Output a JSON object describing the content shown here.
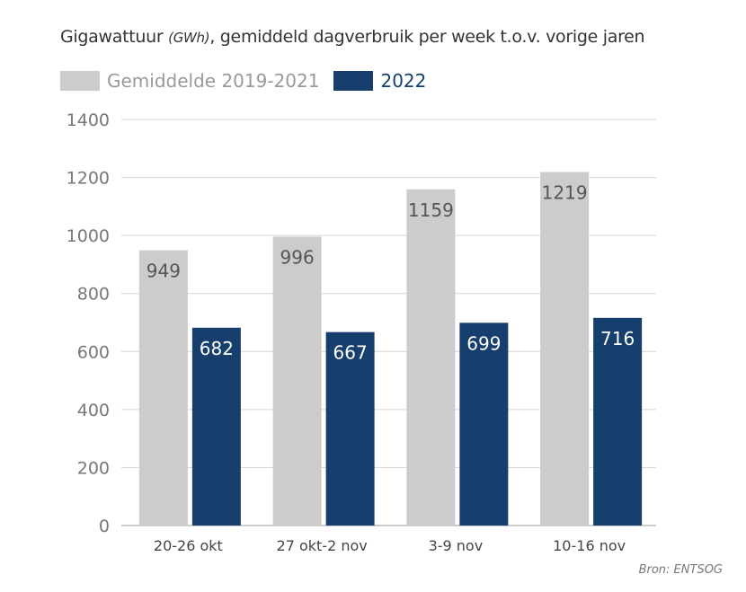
{
  "chart_data": {
    "type": "bar",
    "title": "Gigawattuur",
    "title_unit": "(GWh)",
    "title_rest": ", gemiddeld dagverbruik per week t.o.v. vorige jaren",
    "categories": [
      "20-26 okt",
      "27 okt-2 nov",
      "3-9 nov",
      "10-16 nov"
    ],
    "series": [
      {
        "name": "Gemiddelde 2019-2021",
        "values": [
          949,
          996,
          1159,
          1219
        ],
        "color": "#cccccc",
        "label_color": "#555555"
      },
      {
        "name": "2022",
        "values": [
          682,
          667,
          699,
          716
        ],
        "color": "#163f6e",
        "label_color": "#ffffff"
      }
    ],
    "yticks": [
      0,
      200,
      400,
      600,
      800,
      1000,
      1200,
      1400
    ],
    "ylim": [
      0,
      1400
    ],
    "grid": true,
    "legend": "top-left",
    "source": "Bron: ENTSOG"
  }
}
